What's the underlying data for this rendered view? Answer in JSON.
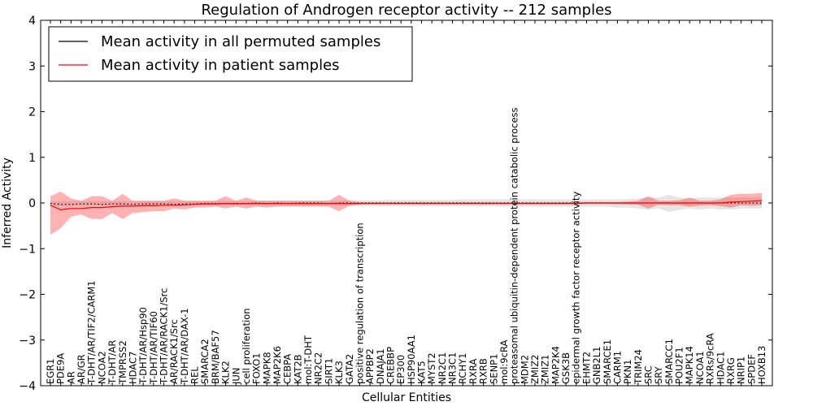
{
  "chart_data": {
    "type": "line",
    "title": "Regulation of Androgen receptor activity -- 212 samples",
    "xlabel": "Cellular Entities",
    "ylabel": "Inferred Activity",
    "ylim": [
      -4,
      4
    ],
    "yticks": [
      -4,
      -3,
      -2,
      -1,
      0,
      1,
      2,
      3,
      4
    ],
    "ytick_labels": [
      "−4",
      "−3",
      "−2",
      "−1",
      "0",
      "1",
      "2",
      "3",
      "4"
    ],
    "legend_position": "top-left",
    "categories": [
      "EGR1",
      "PDE9A",
      "AR",
      "AR/GR",
      "T-DHT/AR/TIF2/CARM1",
      "NCOA2",
      "T-DHT/AR",
      "TMPRSS2",
      "HDAC7",
      "T-DHT/AR/Hsp90",
      "T-DHT/AR/TIF60",
      "T-DHT/AR/RACK1/Src",
      "AR/RACK1/Src",
      "T-DHT/AR/DAX-1",
      "REL",
      "SMARCA2",
      "BRM/BAF57",
      "KLK2",
      "JUN",
      "cell proliferation",
      "FOXO1",
      "MAPK8",
      "MAP2K6",
      "CEBPA",
      "KAT2B",
      "mol:T-DHT",
      "NR2C2",
      "SIRT1",
      "KLK3",
      "GATA2",
      "positive regulation of transcription",
      "APPBP2",
      "DNAJA1",
      "CREBBP",
      "EP300",
      "HSP90AA1",
      "KAT5",
      "MYST2",
      "NR2C1",
      "NR3C1",
      "RCHY1",
      "RXRA",
      "RXRB",
      "SENP1",
      "mol:9cRA",
      "proteasomal ubiquitin-dependent protein catabolic process",
      "MDM2",
      "ZMIZ2",
      "ZMIZ1",
      "MAP2K4",
      "GSK3B",
      "epidermal growth factor receptor activity",
      "EHMT2",
      "GNB2L1",
      "SMARCE1",
      "CARM1",
      "PKN1",
      "TRIM24",
      "SRC",
      "SRY",
      "SMARCC1",
      "POU2F1",
      "MAPK14",
      "NCOA1",
      "RXRs/9cRA",
      "HDAC1",
      "RXRG",
      "NRIP1",
      "SPDEF",
      "HOXB13"
    ],
    "series": [
      {
        "name": "Mean activity in all permuted samples",
        "color": "#000000",
        "style": "dotted",
        "values": [
          -0.01,
          -0.03,
          -0.03,
          -0.02,
          -0.02,
          -0.03,
          -0.02,
          -0.02,
          -0.03,
          -0.02,
          -0.02,
          -0.02,
          -0.03,
          -0.02,
          -0.02,
          -0.01,
          -0.01,
          -0.01,
          -0.02,
          -0.01,
          0.0,
          -0.01,
          0.0,
          -0.01,
          0.0,
          0.0,
          0.0,
          -0.01,
          0.0,
          0.0,
          0.0,
          0.0,
          0.0,
          0.0,
          0.0,
          0.0,
          0.0,
          0.0,
          0.0,
          0.0,
          0.0,
          0.0,
          0.0,
          0.0,
          0.0,
          0.0,
          0.0,
          0.0,
          0.0,
          0.0,
          0.0,
          0.0,
          0.0,
          0.0,
          0.0,
          0.0,
          0.0,
          0.0,
          0.0,
          0.0,
          0.0,
          0.0,
          0.0,
          0.0,
          0.0,
          0.0,
          0.0,
          0.0,
          0.0,
          0.0
        ],
        "band_lower": [
          -0.06,
          -0.07,
          -0.07,
          -0.06,
          -0.05,
          -0.06,
          -0.05,
          -0.05,
          -0.06,
          -0.05,
          -0.05,
          -0.05,
          -0.06,
          -0.05,
          -0.05,
          -0.05,
          -0.05,
          -0.05,
          -0.05,
          -0.05,
          -0.05,
          -0.05,
          -0.05,
          -0.05,
          -0.05,
          -0.05,
          -0.05,
          -0.05,
          -0.05,
          -0.06,
          -0.06,
          -0.06,
          -0.07,
          -0.07,
          -0.07,
          -0.07,
          -0.07,
          -0.07,
          -0.07,
          -0.07,
          -0.07,
          -0.07,
          -0.07,
          -0.07,
          -0.08,
          -0.08,
          -0.08,
          -0.08,
          -0.08,
          -0.08,
          -0.08,
          -0.08,
          -0.08,
          -0.08,
          -0.08,
          -0.1,
          -0.1,
          -0.12,
          -0.15,
          -0.12,
          -0.2,
          -0.15,
          -0.12,
          -0.14,
          -0.12,
          -0.14,
          -0.14,
          -0.12,
          -0.12,
          -0.12
        ],
        "band_upper": [
          0.04,
          0.04,
          0.04,
          0.04,
          0.04,
          0.04,
          0.04,
          0.04,
          0.04,
          0.04,
          0.04,
          0.04,
          0.04,
          0.04,
          0.04,
          0.04,
          0.04,
          0.04,
          0.04,
          0.04,
          0.05,
          0.05,
          0.05,
          0.05,
          0.05,
          0.05,
          0.05,
          0.05,
          0.05,
          0.06,
          0.06,
          0.06,
          0.06,
          0.07,
          0.07,
          0.07,
          0.07,
          0.07,
          0.07,
          0.07,
          0.08,
          0.08,
          0.08,
          0.08,
          0.08,
          0.08,
          0.08,
          0.08,
          0.08,
          0.08,
          0.08,
          0.08,
          0.08,
          0.08,
          0.08,
          0.08,
          0.08,
          0.1,
          0.12,
          0.12,
          0.18,
          0.12,
          0.1,
          0.12,
          0.12,
          0.12,
          0.12,
          0.12,
          0.12,
          0.12
        ]
      },
      {
        "name": "Mean activity in patient samples",
        "color": "#ff0000",
        "style": "solid",
        "values": [
          -0.05,
          -0.15,
          -0.12,
          -0.12,
          -0.1,
          -0.1,
          -0.08,
          -0.07,
          -0.07,
          -0.06,
          -0.06,
          -0.05,
          -0.05,
          -0.04,
          -0.03,
          -0.02,
          -0.02,
          -0.01,
          -0.01,
          -0.01,
          -0.01,
          -0.01,
          -0.01,
          -0.01,
          -0.01,
          -0.01,
          -0.01,
          -0.01,
          -0.01,
          -0.01,
          -0.01,
          -0.01,
          -0.01,
          -0.01,
          -0.01,
          -0.01,
          -0.01,
          -0.01,
          -0.01,
          -0.01,
          -0.01,
          -0.01,
          -0.01,
          -0.01,
          -0.01,
          -0.01,
          -0.01,
          -0.01,
          -0.01,
          -0.01,
          -0.01,
          -0.01,
          0.0,
          0.0,
          0.0,
          0.0,
          0.0,
          0.0,
          0.0,
          0.0,
          0.0,
          0.0,
          0.0,
          0.0,
          0.0,
          0.0,
          0.02,
          0.03,
          0.04,
          0.05
        ],
        "band_lower": [
          -0.7,
          -0.55,
          -0.3,
          -0.25,
          -0.35,
          -0.35,
          -0.22,
          -0.35,
          -0.22,
          -0.2,
          -0.18,
          -0.18,
          -0.12,
          -0.14,
          -0.1,
          -0.1,
          -0.08,
          -0.12,
          -0.08,
          -0.12,
          -0.08,
          -0.1,
          -0.08,
          -0.08,
          -0.08,
          -0.08,
          -0.08,
          -0.08,
          -0.18,
          -0.06,
          -0.03,
          -0.02,
          -0.02,
          -0.02,
          -0.02,
          -0.02,
          -0.02,
          -0.02,
          -0.02,
          -0.02,
          -0.02,
          -0.02,
          -0.02,
          -0.02,
          -0.02,
          -0.02,
          -0.02,
          -0.02,
          -0.02,
          -0.02,
          -0.02,
          -0.02,
          -0.02,
          -0.02,
          -0.02,
          -0.02,
          -0.03,
          -0.04,
          -0.12,
          -0.04,
          -0.05,
          -0.05,
          -0.08,
          -0.06,
          -0.05,
          -0.07,
          -0.1,
          -0.05,
          -0.06,
          -0.05
        ],
        "band_upper": [
          0.15,
          0.25,
          0.1,
          0.05,
          0.15,
          0.15,
          0.05,
          0.2,
          0.05,
          0.05,
          0.05,
          0.05,
          0.1,
          0.05,
          0.05,
          0.05,
          0.05,
          0.15,
          0.05,
          0.12,
          0.05,
          0.05,
          0.05,
          0.05,
          0.05,
          0.05,
          0.05,
          0.05,
          0.18,
          0.05,
          0.02,
          0.02,
          0.02,
          0.02,
          0.02,
          0.02,
          0.02,
          0.02,
          0.02,
          0.02,
          0.02,
          0.02,
          0.02,
          0.02,
          0.02,
          0.02,
          0.02,
          0.02,
          0.02,
          0.02,
          0.02,
          0.02,
          0.02,
          0.02,
          0.02,
          0.02,
          0.03,
          0.05,
          0.15,
          0.05,
          0.05,
          0.06,
          0.12,
          0.05,
          0.05,
          0.08,
          0.18,
          0.2,
          0.2,
          0.22
        ]
      }
    ]
  }
}
